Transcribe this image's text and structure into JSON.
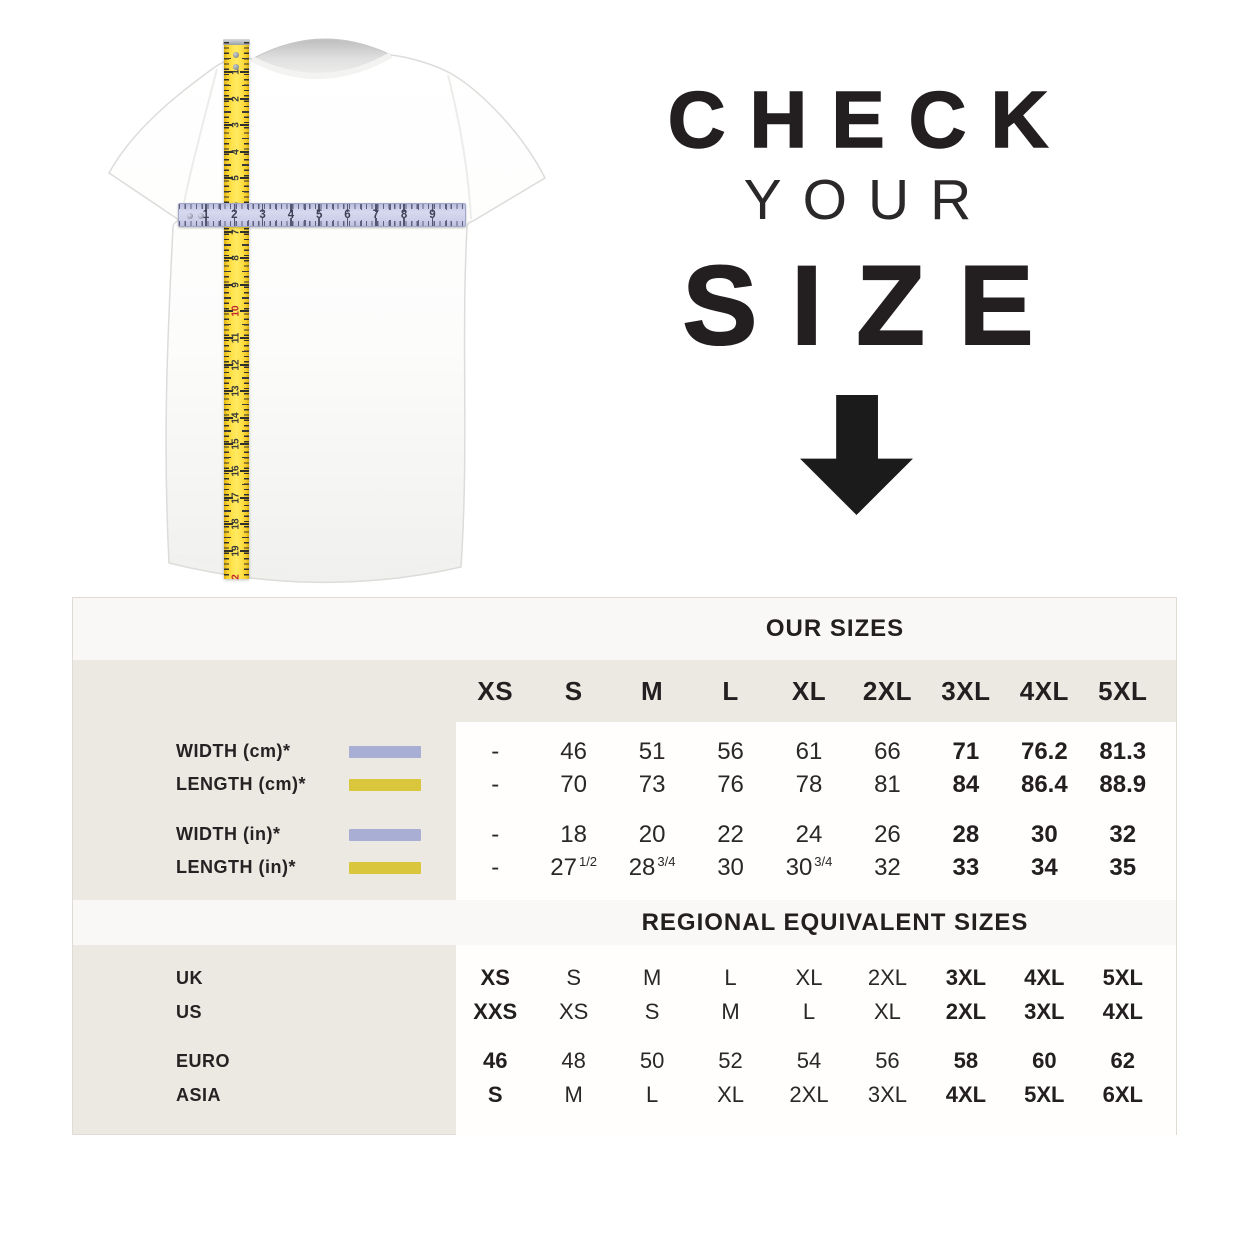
{
  "title": {
    "line1": "CHECK",
    "line2": "YOUR",
    "line3": "SIZE"
  },
  "tshirt": {
    "vertical_tape": {
      "numbers": [
        "1",
        "2",
        "3",
        "4",
        "5",
        "6",
        "7",
        "8",
        "9",
        "10",
        "11",
        "12",
        "13",
        "14",
        "15",
        "16",
        "17",
        "18",
        "19"
      ],
      "red_numbers": [
        "10"
      ],
      "bottom_number": "2"
    },
    "horizontal_ruler": {
      "numbers": [
        "1",
        "2",
        "3",
        "4",
        "5",
        "6",
        "7",
        "8",
        "9"
      ]
    }
  },
  "table": {
    "our_sizes": {
      "title": "OUR SIZES",
      "columns": [
        "XS",
        "S",
        "M",
        "L",
        "XL",
        "2XL",
        "3XL",
        "4XL",
        "5XL"
      ],
      "bold_columns": [
        6,
        7,
        8
      ],
      "rows": [
        {
          "label": "WIDTH (cm)*",
          "swatch": "lavender",
          "values": [
            "-",
            "46",
            "51",
            "56",
            "61",
            "66",
            "71",
            "76.2",
            "81.3"
          ]
        },
        {
          "label": "LENGTH (cm)*",
          "swatch": "yellow",
          "gap_after": true,
          "values": [
            "-",
            "70",
            "73",
            "76",
            "78",
            "81",
            "84",
            "86.4",
            "88.9"
          ]
        },
        {
          "label": "WIDTH (in)*",
          "swatch": "lavender",
          "values": [
            "-",
            "18",
            "20",
            "22",
            "24",
            "26",
            "28",
            "30",
            "32"
          ]
        },
        {
          "label": "LENGTH (in)*",
          "swatch": "yellow",
          "values": [
            "-",
            {
              "main": "27",
              "frac": "1/2"
            },
            {
              "main": "28",
              "frac": "3/4"
            },
            "30",
            {
              "main": "30",
              "frac": "3/4"
            },
            "32",
            "33",
            "34",
            "35"
          ]
        }
      ]
    },
    "regional": {
      "title": "REGIONAL EQUIVALENT SIZES",
      "bold_columns": [
        0,
        6,
        7,
        8
      ],
      "rows": [
        {
          "label": "UK",
          "values": [
            "XS",
            "S",
            "M",
            "L",
            "XL",
            "2XL",
            "3XL",
            "4XL",
            "5XL"
          ]
        },
        {
          "label": "US",
          "gap_after": true,
          "values": [
            "XXS",
            "XS",
            "S",
            "M",
            "L",
            "XL",
            "2XL",
            "3XL",
            "4XL"
          ]
        },
        {
          "label": "EURO",
          "values": [
            "46",
            "48",
            "50",
            "52",
            "54",
            "56",
            "58",
            "60",
            "62"
          ]
        },
        {
          "label": "ASIA",
          "values": [
            "S",
            "M",
            "L",
            "XL",
            "2XL",
            "3XL",
            "4XL",
            "5XL",
            "6XL"
          ]
        }
      ]
    },
    "colors": {
      "lavender": "#a9aed4",
      "yellow": "#d9c63c",
      "beige": "#ece8e2",
      "band_white": "#faf8f6",
      "panel_white": "#fffefd",
      "text": "#231f20",
      "tape_red": "#c0272d"
    }
  }
}
